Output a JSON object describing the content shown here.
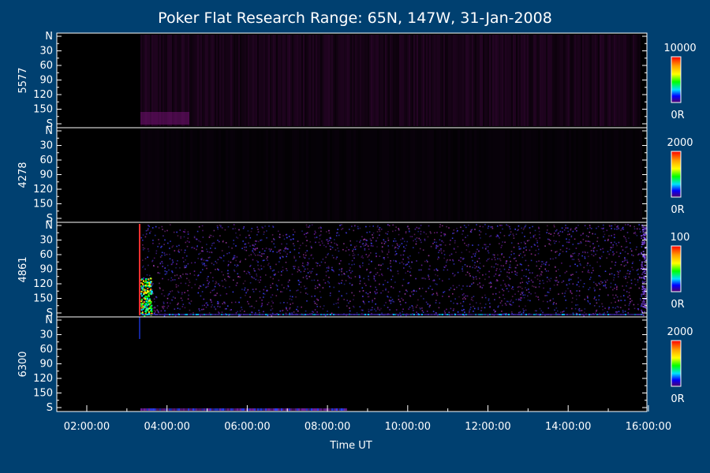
{
  "chart_data": {
    "type": "heatmap",
    "title": "Poker Flat Research Range: 65N, 147W, 31-Jan-2008",
    "xlabel": "Time UT",
    "x_ticks": [
      "02:00:00",
      "04:00:00",
      "06:00:00",
      "08:00:00",
      "10:00:00",
      "12:00:00",
      "14:00:00",
      "16:00:00"
    ],
    "y_ticks": [
      "N",
      "30",
      "60",
      "90",
      "120",
      "150",
      "S"
    ],
    "panels": [
      {
        "name": "5577",
        "scale_max": "10000",
        "scale_min": "0R"
      },
      {
        "name": "4278",
        "scale_max": "2000",
        "scale_min": "0R"
      },
      {
        "name": "4861",
        "scale_max": "100",
        "scale_min": "0R"
      },
      {
        "name": "6300",
        "scale_max": "2000",
        "scale_min": "0R"
      }
    ]
  },
  "colors": {
    "background": "#004070",
    "plot_background": "#000000",
    "colorbar": [
      "#ff0000",
      "#ff8800",
      "#ffff00",
      "#00ff00",
      "#00ffff",
      "#0000ff",
      "#4a006a"
    ]
  }
}
